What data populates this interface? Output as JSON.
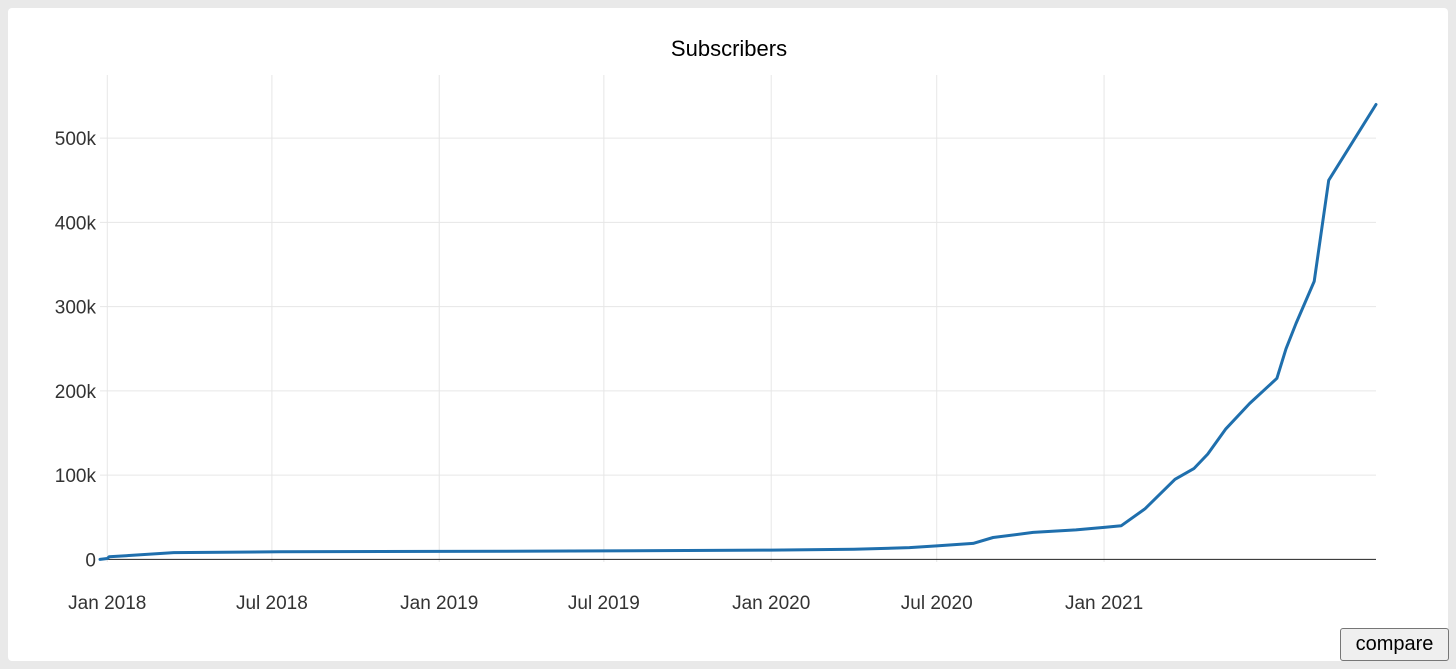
{
  "chart_data": {
    "type": "line",
    "title": "Subscribers",
    "xlabel": "",
    "ylabel": "",
    "grid": true,
    "legend": "none",
    "xlim": [
      "2017-12-24",
      "2021-10-27"
    ],
    "ylim": [
      -15000,
      575000
    ],
    "x_ticks": [
      "Jan 2018",
      "Jul 2018",
      "Jan 2019",
      "Jul 2019",
      "Jan 2020",
      "Jul 2020",
      "Jan 2021"
    ],
    "x_tick_dates": [
      "2018-01-01",
      "2018-07-01",
      "2019-01-01",
      "2019-07-01",
      "2020-01-01",
      "2020-07-01",
      "2021-01-01"
    ],
    "y_ticks": [
      0,
      100000,
      200000,
      300000,
      400000,
      500000
    ],
    "y_tick_labels": [
      "0",
      "100k",
      "200k",
      "300k",
      "400k",
      "500k"
    ],
    "line_color": "#1f6fad",
    "series": [
      {
        "x": [
          "2017-12-24",
          "2018-01-01",
          "2018-01-03",
          "2018-03-15",
          "2018-07-10",
          "2019-01-01",
          "2019-07-01",
          "2020-01-01",
          "2020-04-01",
          "2020-06-01",
          "2020-07-01",
          "2020-08-10",
          "2020-09-01",
          "2020-10-15",
          "2020-12-01",
          "2021-01-01",
          "2021-01-20",
          "2021-02-15",
          "2021-03-20",
          "2021-04-10",
          "2021-04-25",
          "2021-05-15",
          "2021-06-10",
          "2021-07-10",
          "2021-07-20",
          "2021-07-31",
          "2021-08-20",
          "2021-09-05",
          "2021-10-27"
        ],
        "y": [
          0,
          1000,
          3000,
          8000,
          9000,
          9500,
          10000,
          11000,
          12000,
          14000,
          16000,
          19000,
          26000,
          32000,
          35000,
          38000,
          40000,
          60000,
          95000,
          108000,
          125000,
          155000,
          185000,
          215000,
          250000,
          280000,
          330000,
          450000,
          540000
        ]
      }
    ]
  },
  "actions": {
    "compare_label": "compare"
  }
}
